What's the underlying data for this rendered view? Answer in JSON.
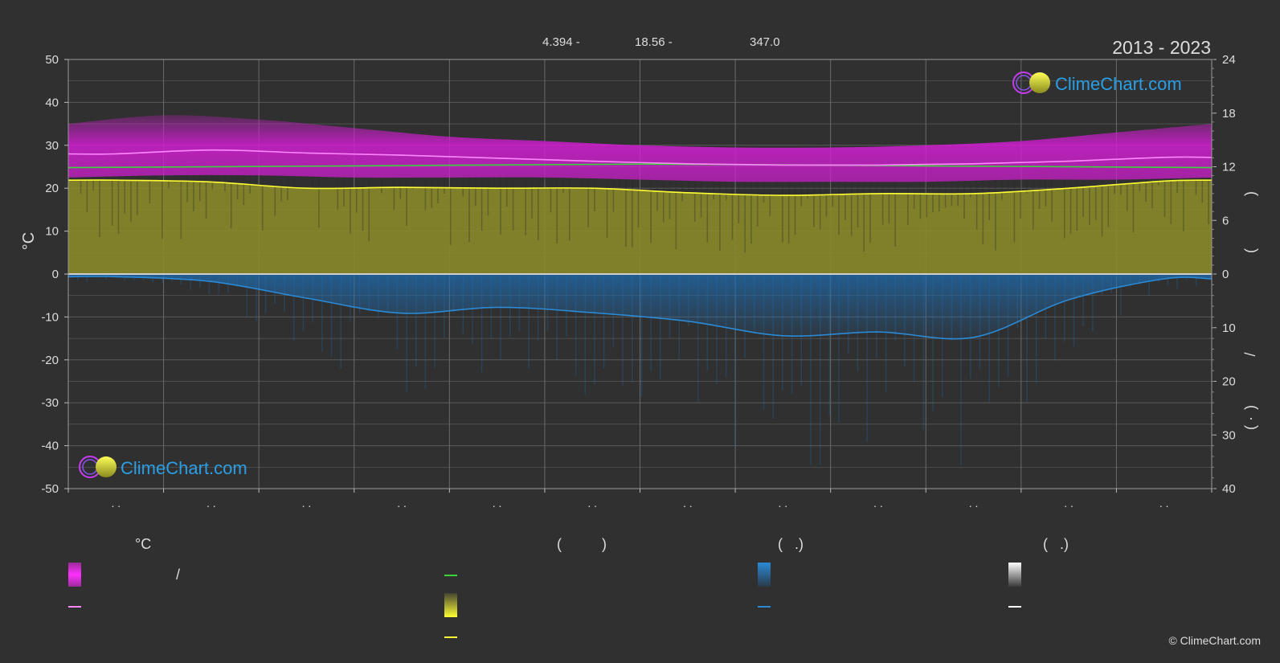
{
  "header": {
    "stats": [
      "4.394 -",
      "18.56 -",
      "347.0"
    ],
    "years": "2013 - 2023"
  },
  "logos": {
    "text": "ClimeChart.com"
  },
  "copyright": "© ClimeChart.com",
  "legend": {
    "headers": [
      "°C",
      "(          )",
      "(   .)",
      "(   .)"
    ],
    "slash": "/"
  },
  "colors": {
    "background": "#303030",
    "temp_band": "#d21ed2",
    "temp_line": "#ff88ff",
    "daylight_line": "#3bd23b",
    "sunshine_band": "#8a8a2a",
    "sunshine_line": "#ffff33",
    "precip_band": "#1e6eb4",
    "precip_line": "#2a8ad6",
    "logo_text": "#2a9fe6"
  },
  "chart_data": {
    "type": "area",
    "month_tick_labels": [
      ". .",
      ". .",
      ". .",
      ". .",
      ". .",
      ". .",
      ". .",
      ". .",
      ". .",
      ". .",
      ". .",
      ". ."
    ],
    "left_axis": {
      "label": "°C",
      "ylim": [
        -50,
        50
      ],
      "ticks": [
        50,
        40,
        30,
        20,
        10,
        0,
        -10,
        -20,
        -30,
        -40,
        -50
      ]
    },
    "right_axis_top": {
      "ylim": [
        0,
        24
      ],
      "ticks": [
        24,
        18,
        12,
        6,
        0
      ]
    },
    "right_axis_bottom": {
      "ylim": [
        0,
        40
      ],
      "ticks": [
        0,
        10,
        20,
        30,
        40
      ]
    },
    "right_axis_glyphs": [
      ")",
      "(",
      "/",
      ")",
      "·",
      "("
    ],
    "grid": true,
    "series": [
      {
        "role": "temperature_band",
        "x": [
          0,
          1,
          2,
          3,
          4,
          5,
          6,
          7,
          8,
          9,
          10,
          11,
          12
        ],
        "upper": [
          35,
          37,
          36,
          34,
          32,
          31,
          30,
          29.5,
          29.5,
          30,
          31,
          33,
          35
        ],
        "lower": [
          22.5,
          23,
          23,
          22.5,
          22.5,
          22.5,
          22,
          21.5,
          21.5,
          21.5,
          22,
          22,
          22.5
        ]
      },
      {
        "role": "temperature_mean",
        "x": [
          0,
          0.5,
          1.5,
          2.5,
          3.5,
          4.5,
          5.5,
          6.5,
          7.5,
          8.5,
          9.5,
          10.5,
          11.5,
          12
        ],
        "values": [
          28,
          28,
          28.9,
          28.2,
          27.7,
          27,
          26.3,
          25.7,
          25.4,
          25.4,
          25.7,
          26.3,
          27.2,
          27.2
        ]
      },
      {
        "role": "daylight_hours",
        "x": [
          0,
          3,
          6,
          9,
          12
        ],
        "values": [
          11.9,
          12.1,
          12.3,
          12.1,
          11.9
        ]
      },
      {
        "role": "sunshine_hours",
        "x": [
          0,
          0.5,
          1.5,
          2.5,
          3.5,
          4.5,
          5.5,
          6.5,
          7.5,
          8.5,
          9.5,
          10.5,
          11.5,
          12
        ],
        "values": [
          10.5,
          10.5,
          10.3,
          9.6,
          9.7,
          9.6,
          9.6,
          9.1,
          8.8,
          9.0,
          9.0,
          9.6,
          10.4,
          10.5
        ]
      },
      {
        "role": "precipitation",
        "x": [
          0,
          0.5,
          1.5,
          2.5,
          3.5,
          4.5,
          5.5,
          6.5,
          7.5,
          8.5,
          9.5,
          10.5,
          11.5,
          12
        ],
        "values": [
          0.5,
          0.5,
          1.4,
          4.5,
          7.3,
          6.2,
          7.2,
          8.8,
          11.5,
          10.8,
          11.8,
          4.8,
          0.9,
          0.9
        ]
      }
    ]
  }
}
